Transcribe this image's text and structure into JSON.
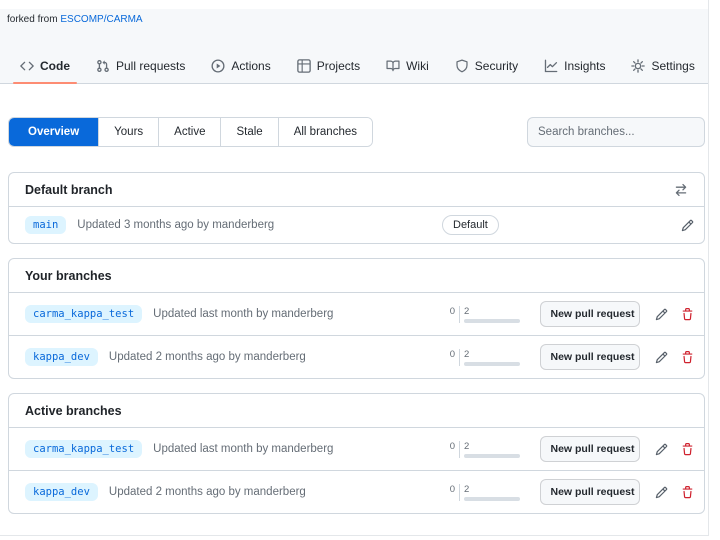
{
  "colors": {
    "accent_blue": "#0969da",
    "active_tab_underline": "#fd8c73",
    "border": "#d0d7de",
    "text_primary": "#1f2328",
    "text_secondary": "#656d76",
    "branch_label_bg": "#ddf4ff",
    "danger_red": "#cf222e",
    "topbar_bg": "#f6f8fa"
  },
  "fork_banner": {
    "prefix": "forked from",
    "repo_link": "ESCOMP/CARMA"
  },
  "repo_nav": {
    "items": [
      {
        "label": "Code",
        "icon": "code-icon",
        "active": true
      },
      {
        "label": "Pull requests",
        "icon": "pull-request-icon",
        "active": false
      },
      {
        "label": "Actions",
        "icon": "play-circle-icon",
        "active": false
      },
      {
        "label": "Projects",
        "icon": "project-table-icon",
        "active": false
      },
      {
        "label": "Wiki",
        "icon": "book-icon",
        "active": false
      },
      {
        "label": "Security",
        "icon": "shield-icon",
        "active": false
      },
      {
        "label": "Insights",
        "icon": "graph-icon",
        "active": false
      },
      {
        "label": "Settings",
        "icon": "gear-icon",
        "active": false
      }
    ]
  },
  "branch_filter": {
    "tabs": [
      {
        "label": "Overview",
        "active": true
      },
      {
        "label": "Yours",
        "active": false
      },
      {
        "label": "Active",
        "active": false
      },
      {
        "label": "Stale",
        "active": false
      },
      {
        "label": "All branches",
        "active": false
      }
    ]
  },
  "search": {
    "placeholder": "Search branches..."
  },
  "action_icons": {
    "edit": "pencil-icon",
    "delete": "trash-icon",
    "pull_request": "pull-request-icon",
    "switch_default": "arrow-switch-icon"
  },
  "sections": [
    {
      "title": "Default branch",
      "header_icon": "arrow-switch-icon",
      "rows": [
        {
          "branch": "main",
          "updated": "Updated 3 months ago by manderberg",
          "badge": "Default",
          "edit": true,
          "delete": false
        }
      ]
    },
    {
      "title": "Your branches",
      "rows": [
        {
          "branch": "carma_kappa_test",
          "updated": "Updated last month by manderberg",
          "behind": "0",
          "ahead": "2",
          "pr_button": "New pull request",
          "edit": true,
          "delete": true
        },
        {
          "branch": "kappa_dev",
          "updated": "Updated 2 months ago by manderberg",
          "behind": "0",
          "ahead": "2",
          "pr_button": "New pull request",
          "edit": true,
          "delete": true
        }
      ]
    },
    {
      "title": "Active branches",
      "rows": [
        {
          "branch": "carma_kappa_test",
          "updated": "Updated last month by manderberg",
          "behind": "0",
          "ahead": "2",
          "pr_button": "New pull request",
          "edit": true,
          "delete": true
        },
        {
          "branch": "kappa_dev",
          "updated": "Updated 2 months ago by manderberg",
          "behind": "0",
          "ahead": "2",
          "pr_button": "New pull request",
          "edit": true,
          "delete": true
        }
      ]
    }
  ]
}
